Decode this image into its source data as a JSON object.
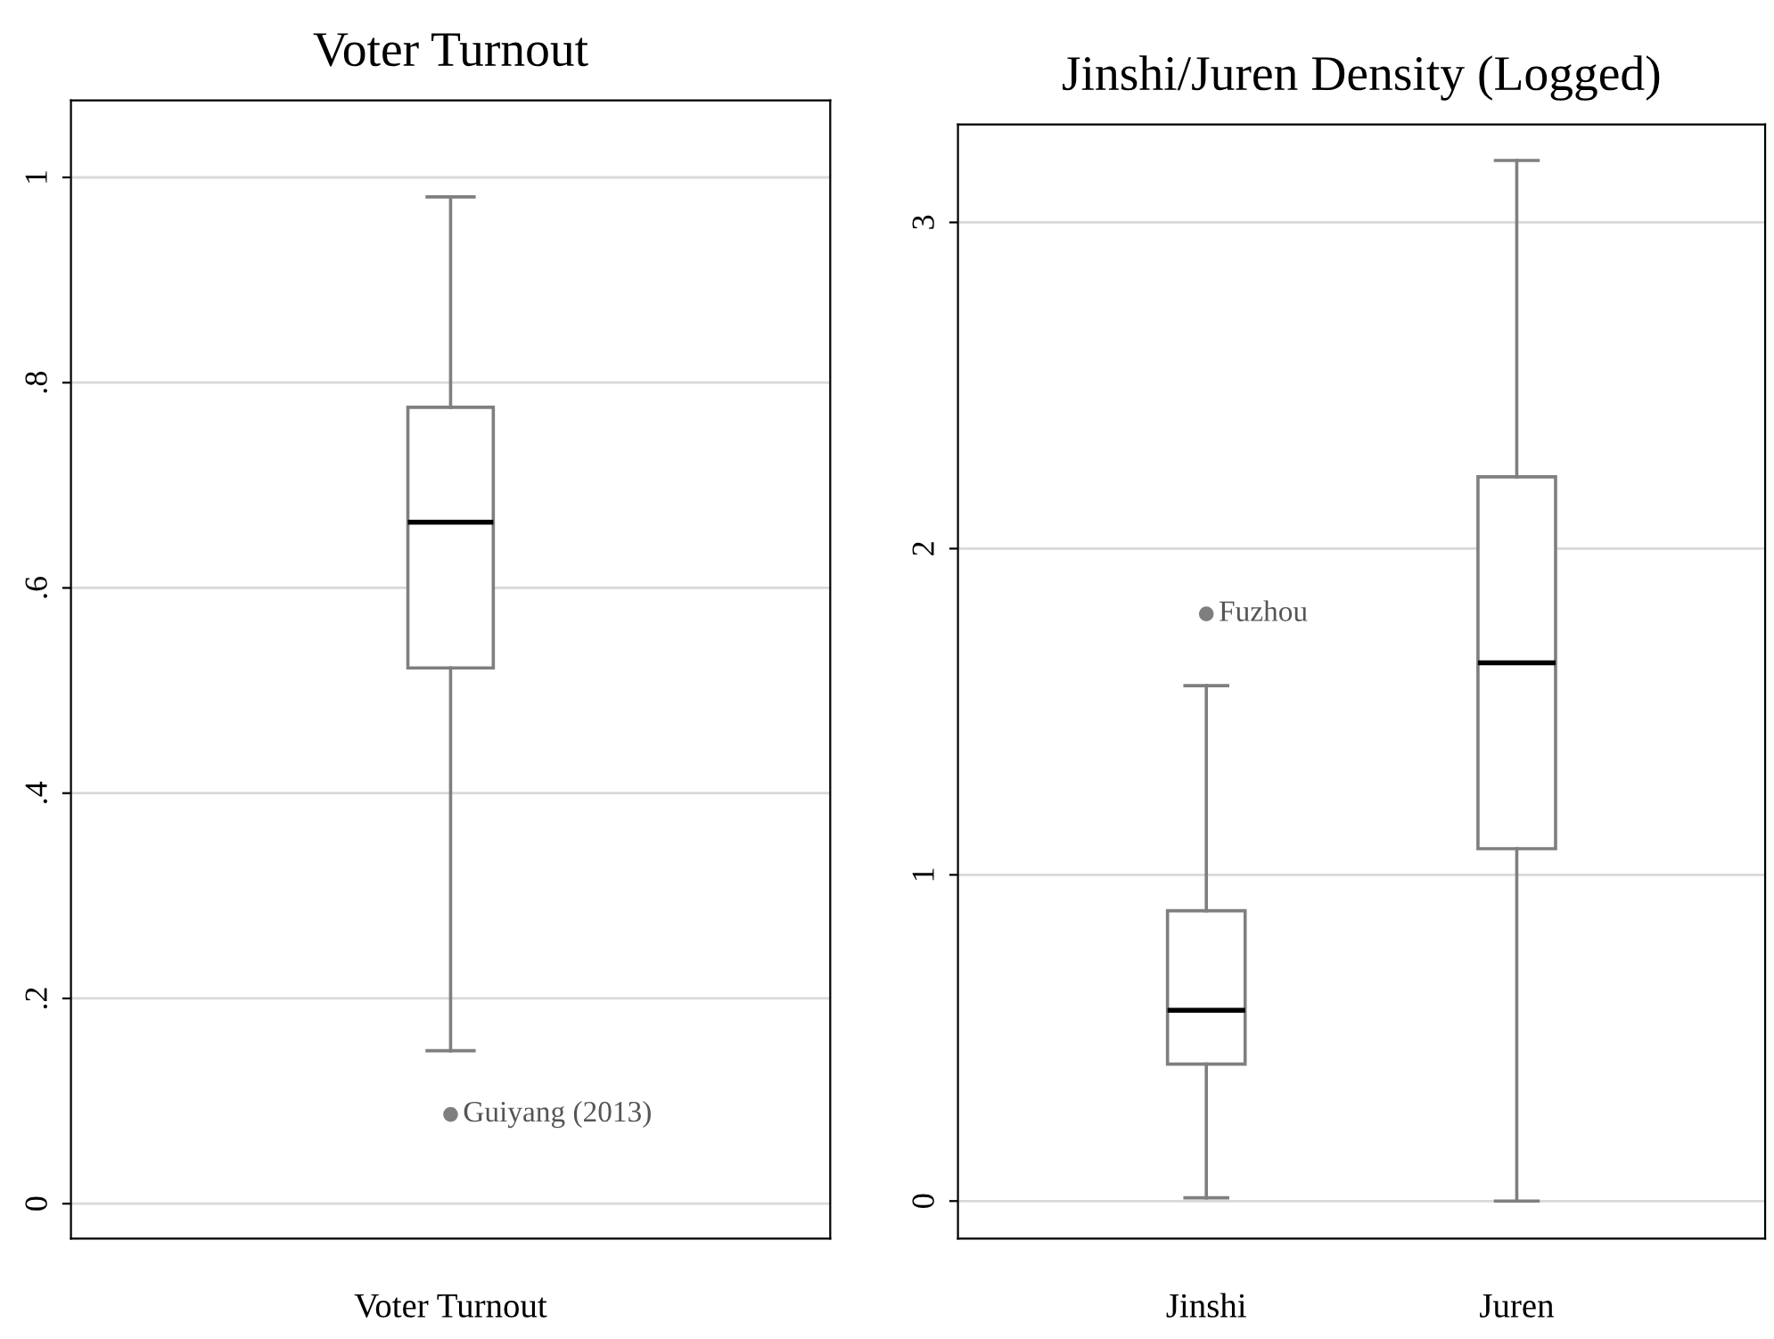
{
  "chart_data": [
    {
      "type": "box",
      "title": "Voter Turnout",
      "categories": [
        "Voter Turnout"
      ],
      "color": "#7f7f7f",
      "grid": "y",
      "ylim": [
        -0.034,
        1.075
      ],
      "yticks": [
        {
          "value": 0,
          "label": "0"
        },
        {
          "value": 0.2,
          "label": ".2"
        },
        {
          "value": 0.4,
          "label": ".4"
        },
        {
          "value": 0.6,
          "label": ".6"
        },
        {
          "value": 0.8,
          "label": ".8"
        },
        {
          "value": 1,
          "label": "1"
        }
      ],
      "boxes": [
        {
          "low": 0.149,
          "q1": 0.522,
          "median": 0.664,
          "q3": 0.776,
          "high": 0.981,
          "outliers": [
            0.087
          ]
        }
      ],
      "annotations": [
        "Guiyang (2013)"
      ]
    },
    {
      "type": "box",
      "title": "Jinshi/Juren Density (Logged)",
      "categories": [
        "Jinshi",
        "Juren"
      ],
      "color": "#7f7f7f",
      "grid": "y",
      "ylim": [
        -0.115,
        3.3
      ],
      "yticks": [
        0,
        1,
        2,
        3
      ],
      "boxes": [
        {
          "low": 0.01,
          "q1": 0.42,
          "median": 0.585,
          "q3": 0.89,
          "high": 1.58,
          "outliers": [
            1.8
          ]
        },
        {
          "low": 0.0,
          "q1": 1.08,
          "median": 1.65,
          "q3": 2.22,
          "high": 3.19
        }
      ],
      "annotations": [
        "Fuzhou"
      ]
    }
  ]
}
